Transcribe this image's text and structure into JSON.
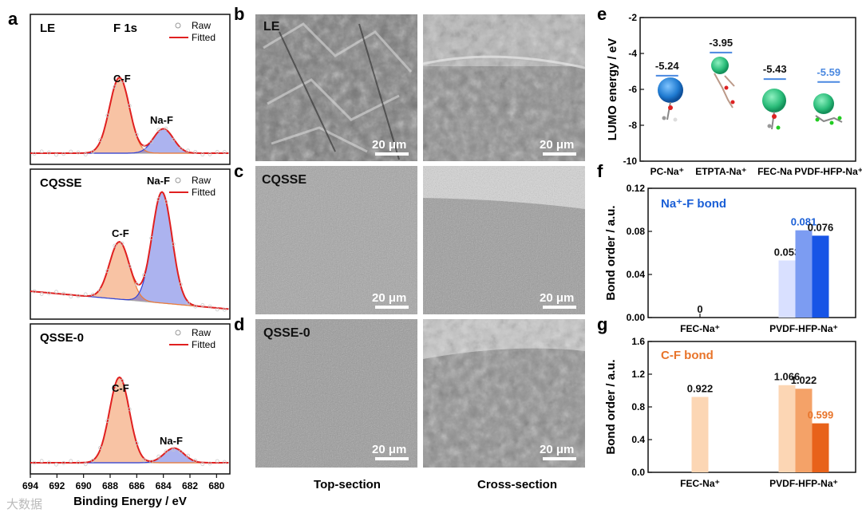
{
  "panel_letters": {
    "a": "a",
    "b": "b",
    "c": "c",
    "d": "d",
    "e": "e",
    "f": "f",
    "g": "g"
  },
  "xps": {
    "element_label": "F 1s",
    "xlabel": "Binding Energy / eV",
    "x_ticks": [
      694,
      692,
      690,
      688,
      686,
      684,
      682,
      680
    ],
    "legend": {
      "raw": "Raw",
      "fitted": "Fitted"
    },
    "peak_labels": {
      "cf": "C-F",
      "naf": "Na-F"
    },
    "colors": {
      "cf": "#f07a35",
      "naf": "#3040d8",
      "fit": "#e02020",
      "bg": "#a9a9a9"
    },
    "panels": [
      {
        "name": "LE",
        "cf": {
          "center": 687.3,
          "height": 0.62
        },
        "naf": {
          "center": 684.0,
          "height": 0.2
        }
      },
      {
        "name": "CQSSE",
        "cf": {
          "center": 687.3,
          "height": 0.47
        },
        "naf": {
          "center": 684.1,
          "height": 0.91
        }
      },
      {
        "name": "QSSE-0",
        "cf": {
          "center": 687.3,
          "height": 0.7
        },
        "naf": {
          "center": 683.2,
          "height": 0.12
        }
      }
    ]
  },
  "sem": {
    "rows": [
      "LE",
      "CQSSE",
      "QSSE-0"
    ],
    "scale_bar": "20 μm",
    "col_labels": [
      "Top-section",
      "Cross-section"
    ]
  },
  "watermark": "大数据",
  "chart_data": [
    {
      "type": "scatter",
      "panel": "e",
      "ylabel": "LUMO energy / eV",
      "ylim": [
        -10,
        -2
      ],
      "y_ticks": [
        -2,
        -4,
        -6,
        -8,
        -10
      ],
      "categories": [
        "PC-Na⁺",
        "ETPTA-Na⁺",
        "FEC-Na",
        "PVDF-HFP-Na⁺"
      ],
      "values": [
        -5.24,
        -3.95,
        -5.43,
        -5.59
      ],
      "value_labels": [
        "-5.24",
        "-3.95",
        "-5.43",
        "-5.59"
      ],
      "label_colors": [
        "#111111",
        "#111111",
        "#111111",
        "#4a88e0"
      ]
    },
    {
      "type": "bar",
      "panel": "f",
      "title": "Na⁺-F bond",
      "title_color": "#1b5fd6",
      "ylabel": "Bond order / a.u.",
      "ylim": [
        0,
        0.12
      ],
      "y_ticks": [
        "0.00",
        "0.04",
        "0.08",
        "0.12"
      ],
      "categories": [
        "FEC-Na⁺",
        "PVDF-HFP-Na⁺"
      ],
      "series": [
        {
          "values": [
            0,
            0.053
          ],
          "color": "#d9e0ff"
        },
        {
          "values": [
            null,
            0.081
          ],
          "color": "#7c9cf2"
        },
        {
          "values": [
            null,
            0.076
          ],
          "color": "#1754e6"
        }
      ],
      "data_labels": [
        [
          "0",
          "0.053"
        ],
        [
          null,
          "0.081"
        ],
        [
          null,
          "0.076"
        ]
      ],
      "data_label_colors": [
        "#111111",
        "#1b5fd6",
        "#111111"
      ]
    },
    {
      "type": "bar",
      "panel": "g",
      "title": "C-F bond",
      "title_color": "#e8742a",
      "ylabel": "Bond order / a.u.",
      "ylim": [
        0,
        1.6
      ],
      "y_ticks": [
        "0.0",
        "0.4",
        "0.8",
        "1.2",
        "1.6"
      ],
      "categories": [
        "FEC-Na⁺",
        "PVDF-HFP-Na⁺"
      ],
      "series": [
        {
          "values": [
            0.922,
            1.066
          ],
          "color": "#fcd6b4"
        },
        {
          "values": [
            null,
            1.022
          ],
          "color": "#f4a268"
        },
        {
          "values": [
            null,
            0.599
          ],
          "color": "#e8621a"
        }
      ],
      "data_labels": [
        [
          "0.922",
          "1.066"
        ],
        [
          null,
          "1.022"
        ],
        [
          null,
          "0.599"
        ]
      ],
      "data_label_colors": [
        "#111111",
        "#111111",
        "#e8742a"
      ]
    }
  ]
}
